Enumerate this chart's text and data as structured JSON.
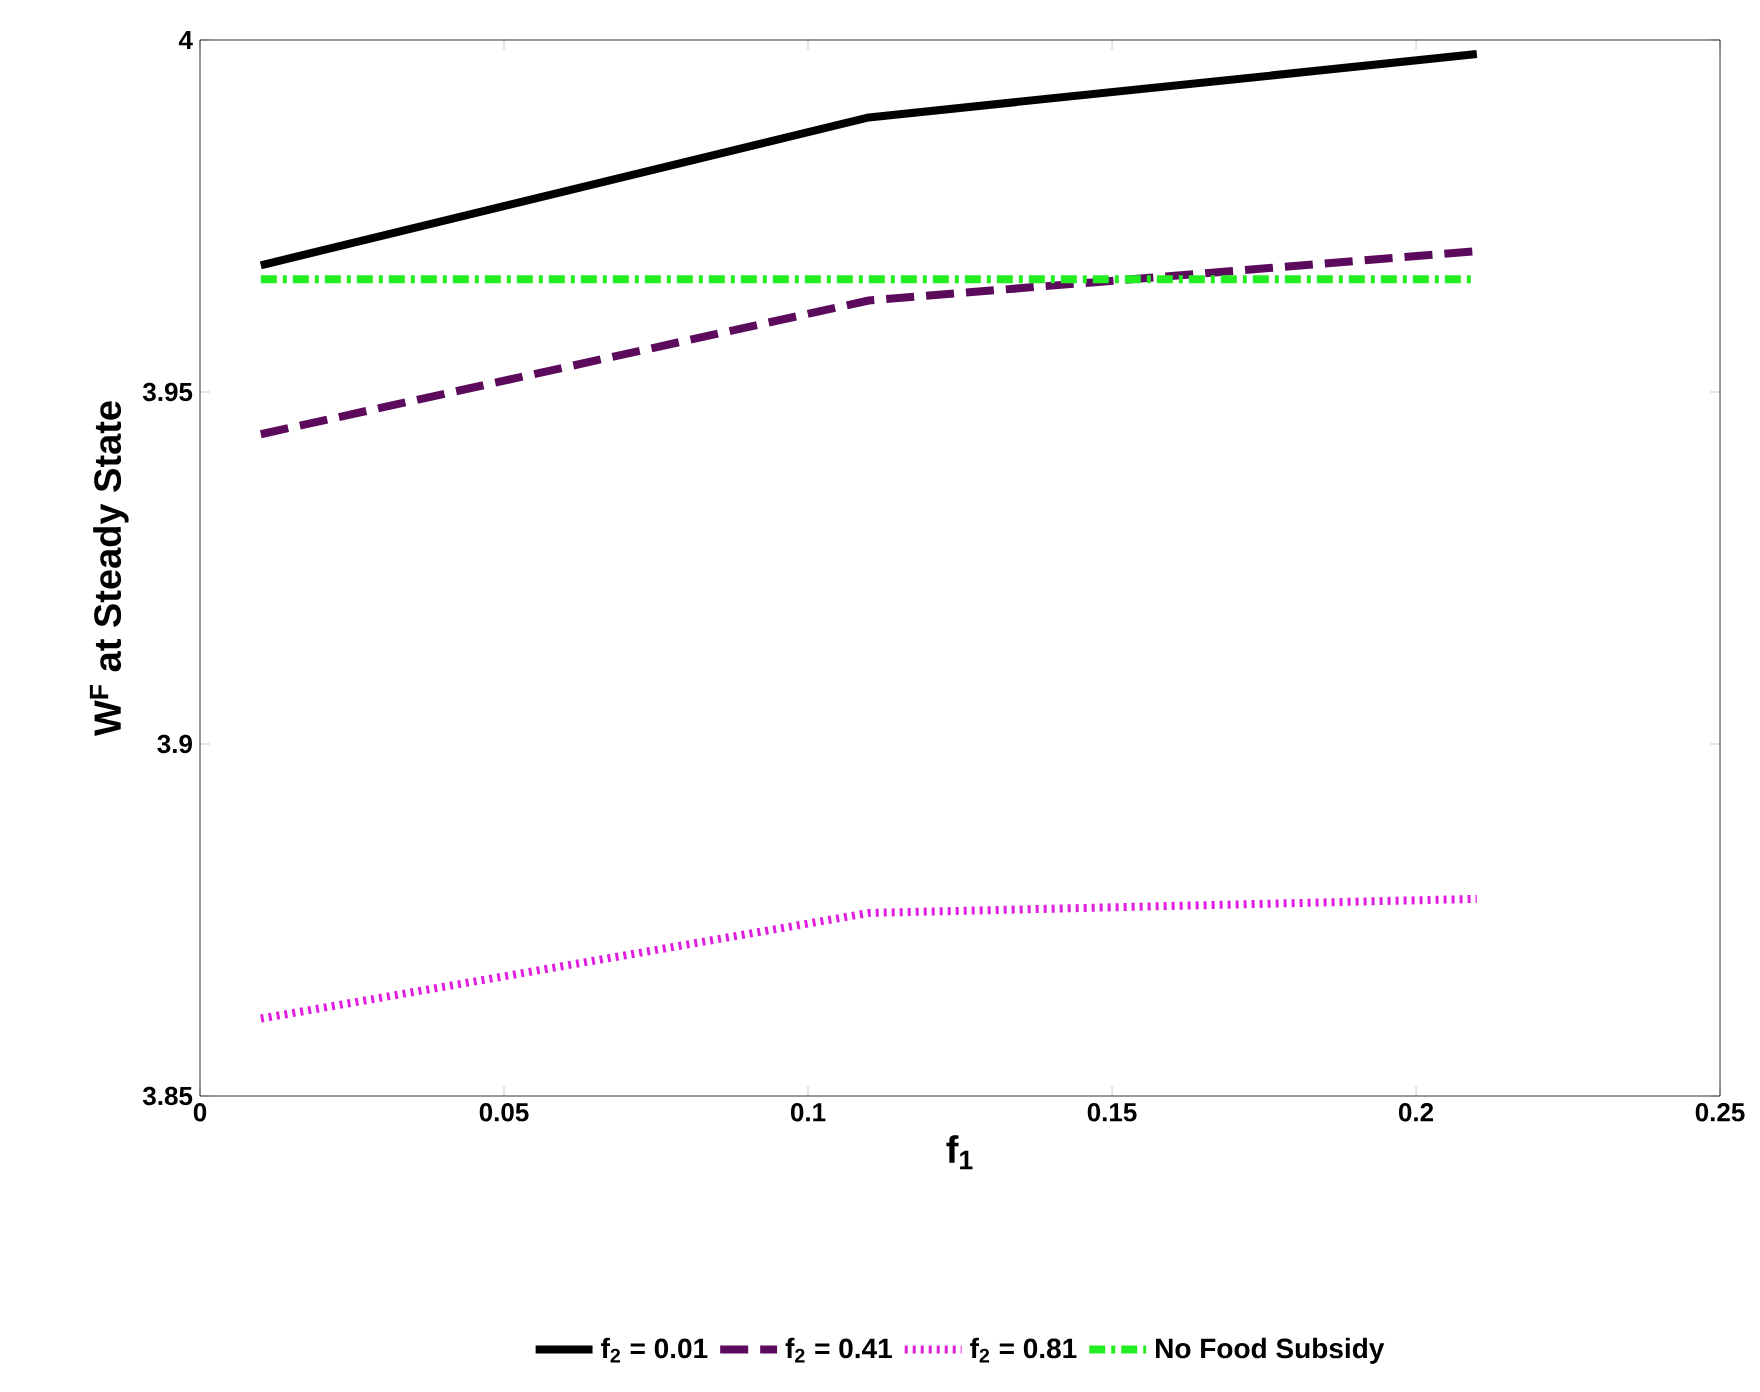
{
  "chart_data": {
    "type": "line",
    "xlabel": "f$_{1}$",
    "ylabel": "W$^{F}$ at Steady State",
    "xlim": [
      0,
      0.25
    ],
    "xticks": [
      0,
      0.05,
      0.1,
      0.15,
      0.2,
      0.25
    ],
    "ylim": [
      3.85,
      4
    ],
    "yticks": [
      3.85,
      3.9,
      3.95,
      4
    ],
    "legend": "bottom",
    "grid": false,
    "series": [
      {
        "name": "f$_{2}$ = 0.01",
        "color": "#000000",
        "line_style": "solid",
        "x": [
          0.01,
          0.11,
          0.21
        ],
        "values": [
          3.968,
          3.989,
          3.998
        ]
      },
      {
        "name": "f$_{2}$ = 0.41",
        "color": "#5c0a5c",
        "line_style": "dashed",
        "x": [
          0.01,
          0.11,
          0.21
        ],
        "values": [
          3.944,
          3.963,
          3.97
        ]
      },
      {
        "name": "f$_{2}$ = 0.81",
        "color": "#e01ee0",
        "line_style": "dotted",
        "x": [
          0.01,
          0.11,
          0.21
        ],
        "values": [
          3.861,
          3.876,
          3.878
        ]
      },
      {
        "name": "No Food Subsidy",
        "color": "#22ee22",
        "line_style": "dashdotted",
        "x": [
          0.01,
          0.11,
          0.21
        ],
        "values": [
          3.966,
          3.966,
          3.966
        ]
      }
    ]
  }
}
